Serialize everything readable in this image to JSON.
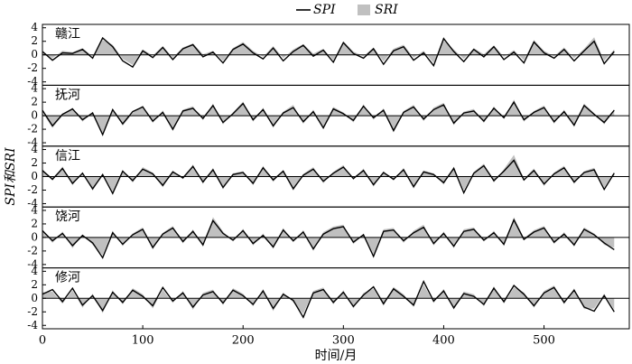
{
  "chart_data": [
    {
      "type": "line",
      "title": "赣江",
      "xlim": [
        0,
        585
      ],
      "ylim": [
        -4.5,
        4.5
      ],
      "yticks": [
        -4,
        -2,
        0,
        2,
        4
      ],
      "x": [
        0,
        10,
        20,
        30,
        40,
        50,
        60,
        70,
        80,
        90,
        100,
        110,
        120,
        130,
        140,
        150,
        160,
        170,
        180,
        190,
        200,
        210,
        220,
        230,
        240,
        250,
        260,
        270,
        280,
        290,
        300,
        310,
        320,
        330,
        340,
        350,
        360,
        370,
        380,
        390,
        400,
        410,
        420,
        430,
        440,
        450,
        460,
        470,
        480,
        490,
        500,
        510,
        520,
        530,
        540,
        550,
        560,
        570
      ],
      "series": [
        {
          "name": "SRI",
          "color": "#c0c0c0",
          "style": "area",
          "values": [
            0.3,
            -0.5,
            0.6,
            0.4,
            1.0,
            -0.2,
            2.2,
            1.5,
            -0.6,
            -1.5,
            0.8,
            -0.1,
            1.3,
            -0.4,
            1.1,
            1.7,
            0.1,
            0.6,
            -0.9,
            1.0,
            1.9,
            0.6,
            -0.3,
            1.3,
            -0.5,
            0.8,
            1.6,
            0.2,
            0.9,
            -0.8,
            2.0,
            0.5,
            -0.2,
            1.1,
            -1.0,
            0.9,
            1.5,
            -0.4,
            0.6,
            -1.2,
            2.1,
            0.8,
            -0.6,
            1.0,
            0.1,
            1.4,
            -0.3,
            0.7,
            -0.8,
            2.2,
            0.6,
            -0.2,
            1.1,
            -0.5,
            0.9,
            2.6,
            -0.9,
            0.8
          ]
        },
        {
          "name": "SPI",
          "color": "#000000",
          "style": "line",
          "values": [
            0.5,
            -0.8,
            0.3,
            0.2,
            0.8,
            -0.5,
            2.5,
            1.2,
            -0.9,
            -1.8,
            0.6,
            -0.4,
            1.1,
            -0.7,
            0.9,
            1.5,
            -0.3,
            0.4,
            -1.2,
            0.8,
            1.6,
            0.3,
            -0.6,
            1.0,
            -0.9,
            0.5,
            1.4,
            -0.2,
            0.7,
            -1.1,
            1.8,
            0.2,
            -0.5,
            0.9,
            -1.4,
            0.6,
            1.2,
            -0.8,
            0.3,
            -1.6,
            2.4,
            0.5,
            -1.0,
            0.8,
            -0.3,
            1.2,
            -0.7,
            0.4,
            -1.2,
            1.9,
            0.3,
            -0.5,
            0.8,
            -0.9,
            0.6,
            2.0,
            -1.3,
            0.5
          ]
        }
      ]
    },
    {
      "type": "line",
      "title": "抚河",
      "xlim": [
        0,
        585
      ],
      "ylim": [
        -4.5,
        4.5
      ],
      "yticks": [
        -4,
        -2,
        0,
        2,
        4
      ],
      "x": [
        0,
        10,
        20,
        30,
        40,
        50,
        60,
        70,
        80,
        90,
        100,
        110,
        120,
        130,
        140,
        150,
        160,
        170,
        180,
        190,
        200,
        210,
        220,
        230,
        240,
        250,
        260,
        270,
        280,
        290,
        300,
        310,
        320,
        330,
        340,
        350,
        360,
        370,
        380,
        390,
        400,
        410,
        420,
        430,
        440,
        450,
        460,
        470,
        480,
        490,
        500,
        510,
        520,
        530,
        540,
        550,
        560,
        570
      ],
      "series": [
        {
          "name": "SRI",
          "color": "#c0c0c0",
          "style": "area",
          "values": [
            0.5,
            -1.8,
            0.0,
            1.2,
            -0.9,
            0.6,
            -2.5,
            1.1,
            -1.5,
            0.4,
            1.5,
            -1.1,
            0.8,
            -2.3,
            0.9,
            1.4,
            -0.7,
            1.8,
            -1.3,
            0.5,
            2.1,
            -0.9,
            1.2,
            -1.8,
            0.6,
            1.6,
            -1.2,
            0.9,
            -2.0,
            1.3,
            0.5,
            -1.0,
            1.7,
            -0.6,
            1.1,
            -2.5,
            0.7,
            1.6,
            -0.8,
            1.2,
            1.9,
            -1.4,
            0.6,
            1.0,
            -1.1,
            1.4,
            -0.5,
            2.4,
            -0.9,
            0.7,
            1.5,
            -1.2,
            0.9,
            -1.7,
            1.8,
            0.4,
            -1.3,
            1.0
          ]
        },
        {
          "name": "SPI",
          "color": "#000000",
          "style": "line",
          "values": [
            0.8,
            -1.5,
            0.2,
            1.0,
            -0.6,
            0.4,
            -2.8,
            0.9,
            -1.2,
            0.6,
            1.3,
            -0.8,
            0.5,
            -2.0,
            0.7,
            1.1,
            -0.4,
            1.5,
            -1.0,
            0.3,
            1.8,
            -0.6,
            0.9,
            -1.5,
            0.4,
            1.2,
            -0.9,
            0.6,
            -1.8,
            1.0,
            0.3,
            -0.7,
            1.4,
            -0.3,
            0.8,
            -2.2,
            0.5,
            1.3,
            -0.5,
            0.9,
            1.6,
            -1.1,
            0.4,
            0.7,
            -0.8,
            1.1,
            -0.3,
            2.0,
            -0.6,
            0.5,
            1.2,
            -0.9,
            0.6,
            -1.4,
            1.5,
            0.2,
            -1.0,
            0.8
          ]
        }
      ]
    },
    {
      "type": "line",
      "title": "信江",
      "ylabel": "SPI和SRI",
      "xlim": [
        0,
        585
      ],
      "ylim": [
        -4.5,
        4.5
      ],
      "yticks": [
        -4,
        -2,
        0,
        2,
        4
      ],
      "x": [
        0,
        10,
        20,
        30,
        40,
        50,
        60,
        70,
        80,
        90,
        100,
        110,
        120,
        130,
        140,
        150,
        160,
        170,
        180,
        190,
        200,
        210,
        220,
        230,
        240,
        250,
        260,
        270,
        280,
        290,
        300,
        310,
        320,
        330,
        340,
        350,
        360,
        370,
        380,
        390,
        400,
        410,
        420,
        430,
        440,
        450,
        460,
        470,
        480,
        490,
        500,
        510,
        520,
        530,
        540,
        550,
        560,
        570
      ],
      "series": [
        {
          "name": "SRI",
          "color": "#c0c0c0",
          "style": "area",
          "values": [
            1.1,
            -0.6,
            1.5,
            -1.3,
            0.7,
            -2.1,
            0.5,
            -2.2,
            1.0,
            -0.9,
            1.4,
            0.6,
            -1.6,
            0.9,
            -0.4,
            1.8,
            -1.1,
            1.3,
            -1.9,
            0.5,
            0.8,
            -1.3,
            1.6,
            -0.8,
            1.0,
            -2.1,
            0.4,
            1.4,
            -1.0,
            0.7,
            1.7,
            -0.5,
            1.2,
            -1.5,
            0.8,
            -0.6,
            1.3,
            -1.8,
            0.9,
            0.5,
            -1.2,
            1.5,
            -2.0,
            0.7,
            1.9,
            -0.9,
            1.1,
            3.2,
            -0.3,
            1.2,
            -1.4,
            0.6,
            1.6,
            -1.1,
            0.8,
            1.3,
            -1.6,
            0.7
          ]
        },
        {
          "name": "SPI",
          "color": "#000000",
          "style": "line",
          "values": [
            0.9,
            -0.4,
            1.2,
            -1.0,
            0.5,
            -1.8,
            0.3,
            -2.5,
            0.8,
            -0.6,
            1.1,
            0.4,
            -1.3,
            0.7,
            -0.2,
            1.5,
            -0.8,
            1.0,
            -1.6,
            0.3,
            0.6,
            -1.0,
            1.3,
            -0.5,
            0.8,
            -1.8,
            0.2,
            1.1,
            -0.7,
            0.5,
            1.4,
            -0.3,
            0.9,
            -1.2,
            0.6,
            -0.4,
            1.0,
            -1.5,
            0.7,
            0.3,
            -0.9,
            1.2,
            -2.4,
            0.5,
            1.6,
            -0.6,
            0.8,
            2.4,
            -0.5,
            0.9,
            -1.1,
            0.4,
            1.3,
            -0.8,
            0.6,
            1.0,
            -1.9,
            0.5
          ]
        }
      ]
    },
    {
      "type": "line",
      "title": "饶河",
      "xlim": [
        0,
        585
      ],
      "ylim": [
        -4.5,
        4.5
      ],
      "yticks": [
        -4,
        -2,
        0,
        2,
        4
      ],
      "x": [
        0,
        10,
        20,
        30,
        40,
        50,
        60,
        70,
        80,
        90,
        100,
        110,
        120,
        130,
        140,
        150,
        160,
        170,
        180,
        190,
        200,
        210,
        220,
        230,
        240,
        250,
        260,
        270,
        280,
        290,
        300,
        310,
        320,
        330,
        340,
        350,
        360,
        370,
        380,
        390,
        400,
        410,
        420,
        430,
        440,
        450,
        460,
        470,
        480,
        490,
        500,
        510,
        520,
        530,
        540,
        550,
        560,
        570
      ],
      "series": [
        {
          "name": "SRI",
          "color": "#c0c0c0",
          "style": "area",
          "values": [
            1.2,
            -0.8,
            0.9,
            -1.6,
            0.5,
            -1.1,
            -2.6,
            1.0,
            -1.3,
            0.6,
            1.5,
            -1.8,
            0.7,
            1.7,
            -0.9,
            1.2,
            -1.4,
            3.0,
            0.9,
            -0.6,
            1.3,
            -1.2,
            0.6,
            -1.7,
            1.4,
            -0.7,
            1.1,
            -2.0,
            0.8,
            1.6,
            1.9,
            -1.0,
            0.6,
            -2.5,
            1.2,
            1.4,
            -0.8,
            1.0,
            1.9,
            -1.2,
            0.9,
            -1.6,
            1.2,
            1.5,
            -0.6,
            1.0,
            -1.3,
            3.0,
            -0.1,
            1.1,
            1.7,
            -1.0,
            0.8,
            -1.4,
            1.5,
            0.6,
            -1.1,
            -1.5
          ]
        },
        {
          "name": "SPI",
          "color": "#000000",
          "style": "line",
          "values": [
            1.0,
            -0.5,
            0.6,
            -1.2,
            0.3,
            -0.8,
            -3.0,
            0.7,
            -1.0,
            0.4,
            1.2,
            -1.5,
            0.5,
            1.4,
            -0.6,
            0.9,
            -1.1,
            2.5,
            0.6,
            -0.4,
            1.0,
            -0.9,
            0.3,
            -1.4,
            1.1,
            -0.5,
            0.8,
            -1.7,
            0.5,
            1.3,
            1.6,
            -0.7,
            0.4,
            -2.8,
            0.9,
            1.1,
            -0.5,
            0.7,
            1.5,
            -0.9,
            0.6,
            -1.3,
            0.9,
            1.2,
            -0.4,
            0.7,
            -1.0,
            2.6,
            -0.3,
            0.8,
            1.4,
            -0.7,
            0.5,
            -1.1,
            1.2,
            0.4,
            -0.8,
            -1.8
          ]
        }
      ]
    },
    {
      "type": "line",
      "title": "修河",
      "xlabel": "时间/月",
      "xlim": [
        0,
        585
      ],
      "xticks": [
        0,
        100,
        200,
        300,
        400,
        500
      ],
      "ylim": [
        -4.5,
        4.5
      ],
      "yticks": [
        -4,
        -2,
        0,
        2,
        4
      ],
      "x": [
        0,
        10,
        20,
        30,
        40,
        50,
        60,
        70,
        80,
        90,
        100,
        110,
        120,
        130,
        140,
        150,
        160,
        170,
        180,
        190,
        200,
        210,
        220,
        230,
        240,
        250,
        260,
        270,
        280,
        290,
        300,
        310,
        320,
        330,
        340,
        350,
        360,
        370,
        380,
        390,
        400,
        410,
        420,
        430,
        440,
        450,
        460,
        470,
        480,
        490,
        500,
        510,
        520,
        530,
        540,
        550,
        560,
        570
      ],
      "series": [
        {
          "name": "SRI",
          "color": "#c0c0c0",
          "style": "area",
          "values": [
            0.9,
            1.0,
            -0.8,
            1.2,
            -1.4,
            0.7,
            -2.2,
            1.2,
            -0.9,
            1.5,
            0.6,
            -1.5,
            1.3,
            -0.7,
            1.1,
            -1.7,
            0.8,
            1.3,
            -1.0,
            1.5,
            0.7,
            -1.2,
            1.4,
            -1.9,
            0.9,
            -0.6,
            -2.3,
            1.1,
            1.6,
            -0.9,
            1.2,
            -1.5,
            0.8,
            1.4,
            -1.1,
            1.7,
            0.6,
            -1.3,
            2.1,
            -0.7,
            1.4,
            -1.7,
            1.0,
            0.6,
            -1.2,
            1.8,
            -0.8,
            1.6,
            0.9,
            -1.4,
            1.1,
            1.9,
            -0.9,
            1.5,
            -1.6,
            -1.5,
            0.7,
            -1.7
          ]
        },
        {
          "name": "SPI",
          "color": "#000000",
          "style": "line",
          "values": [
            0.6,
            1.3,
            -0.5,
            1.5,
            -1.0,
            0.4,
            -1.8,
            0.9,
            -0.6,
            1.2,
            0.3,
            -1.1,
            1.6,
            -0.4,
            0.8,
            -1.3,
            0.5,
            1.0,
            -0.7,
            1.2,
            0.4,
            -0.9,
            1.1,
            -1.5,
            0.6,
            -0.3,
            -2.8,
            0.8,
            1.3,
            -0.6,
            0.9,
            -1.2,
            0.5,
            1.7,
            -0.8,
            1.4,
            0.3,
            -1.0,
            2.5,
            -0.4,
            1.1,
            -1.4,
            0.7,
            0.3,
            -0.9,
            1.5,
            -0.5,
            1.9,
            0.6,
            -1.1,
            0.8,
            1.6,
            -0.6,
            1.2,
            -1.3,
            -1.9,
            0.4,
            -2.0
          ]
        }
      ]
    }
  ]
}
